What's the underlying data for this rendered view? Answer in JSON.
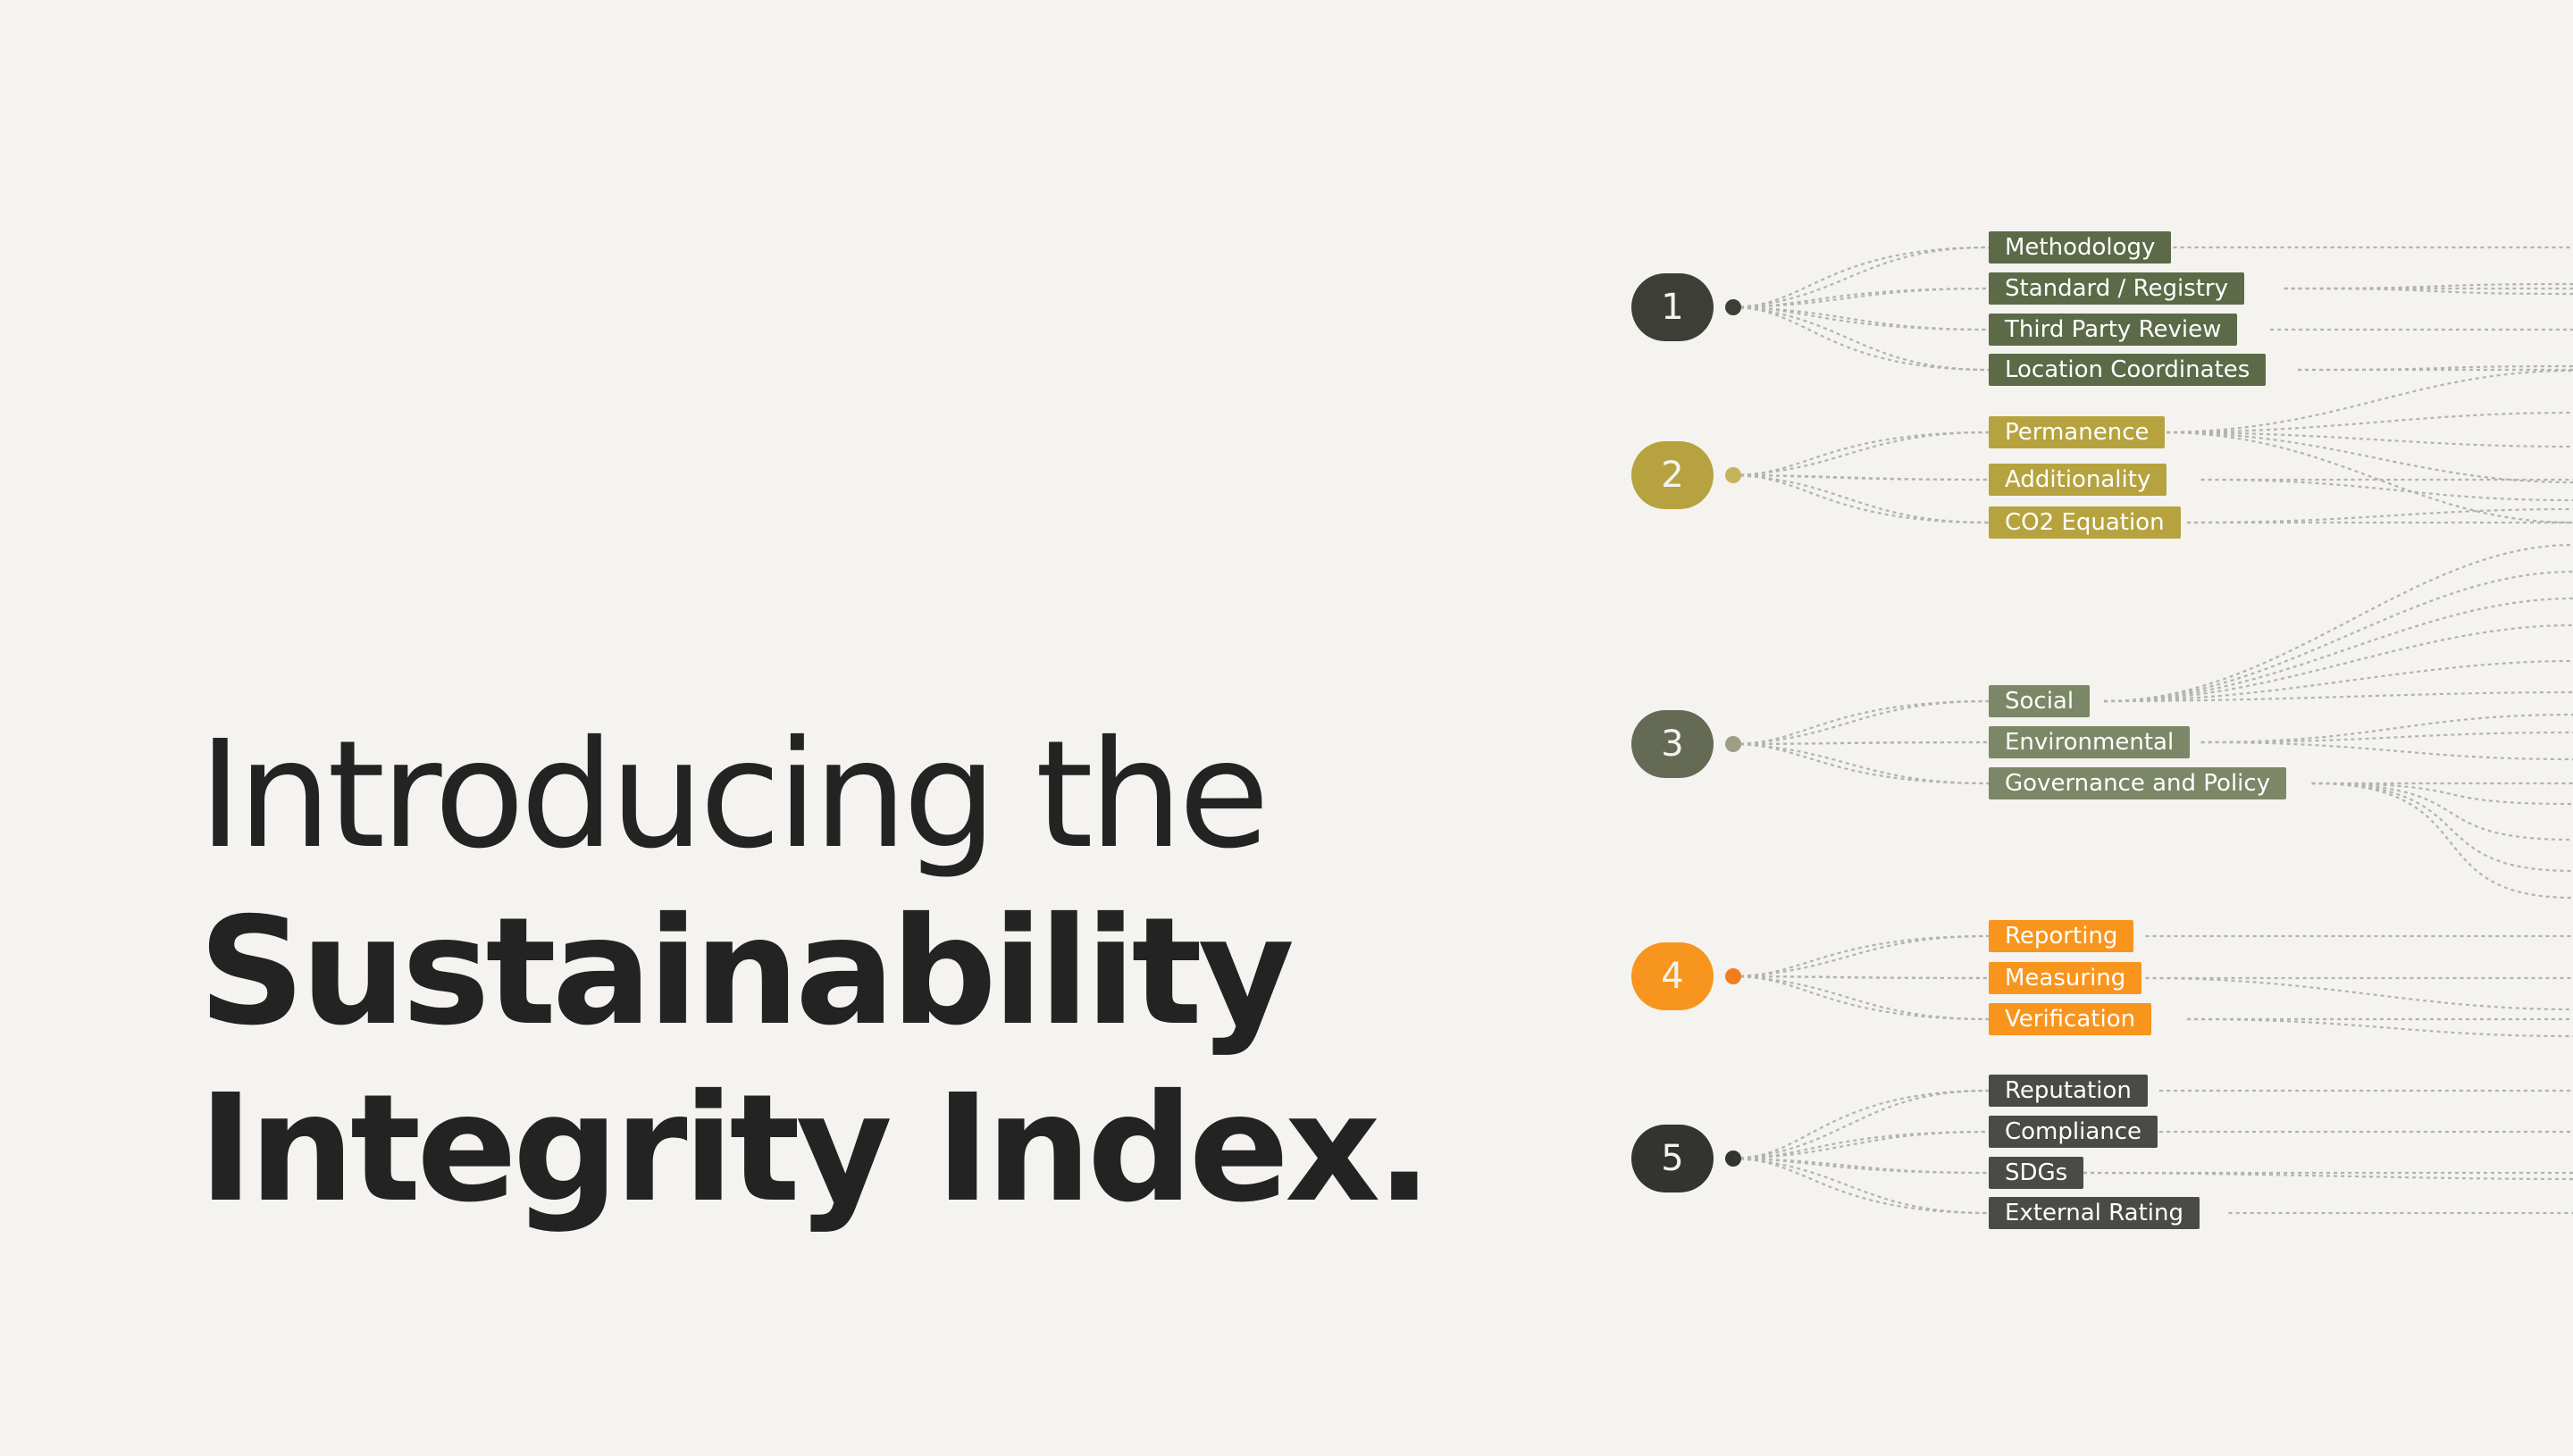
{
  "headline": {
    "line1": "Introducing the",
    "line2": "Sustainability",
    "line3": "Integrity Index."
  },
  "colors": {
    "background": "#f4f3ef",
    "text": "#232323",
    "connector": "#b3b3ad",
    "group1": "#5c6a47",
    "group2": "#b6a33f",
    "group3": "#7b8766",
    "group4": "#f7951e",
    "group5": "#4a4a47"
  },
  "groups": [
    {
      "number": "1",
      "pill_color": "#3d3e36",
      "dot_color": "#3d3e36",
      "tag_color": "#5c6a47",
      "tags": [
        "Methodology",
        "Standard / Registry",
        "Third Party Review",
        "Location Coordinates"
      ]
    },
    {
      "number": "2",
      "pill_color": "#b6a33f",
      "dot_color": "#c7b35a",
      "tag_color": "#b6a33f",
      "tags": [
        "Permanence",
        "Additionality",
        "CO2 Equation"
      ]
    },
    {
      "number": "3",
      "pill_color": "#656a55",
      "dot_color": "#a09d86",
      "tag_color": "#7b8766",
      "tags": [
        "Social",
        "Environmental",
        "Governance and Policy"
      ]
    },
    {
      "number": "4",
      "pill_color": "#f7951e",
      "dot_color": "#f07d1e",
      "tag_color": "#f7951e",
      "tags": [
        "Reporting",
        "Measuring",
        "Verification"
      ]
    },
    {
      "number": "5",
      "pill_color": "#33332f",
      "dot_color": "#33332f",
      "tag_color": "#4a4a47",
      "tags": [
        "Reputation",
        "Compliance",
        "SDGs",
        "External Rating"
      ]
    }
  ]
}
